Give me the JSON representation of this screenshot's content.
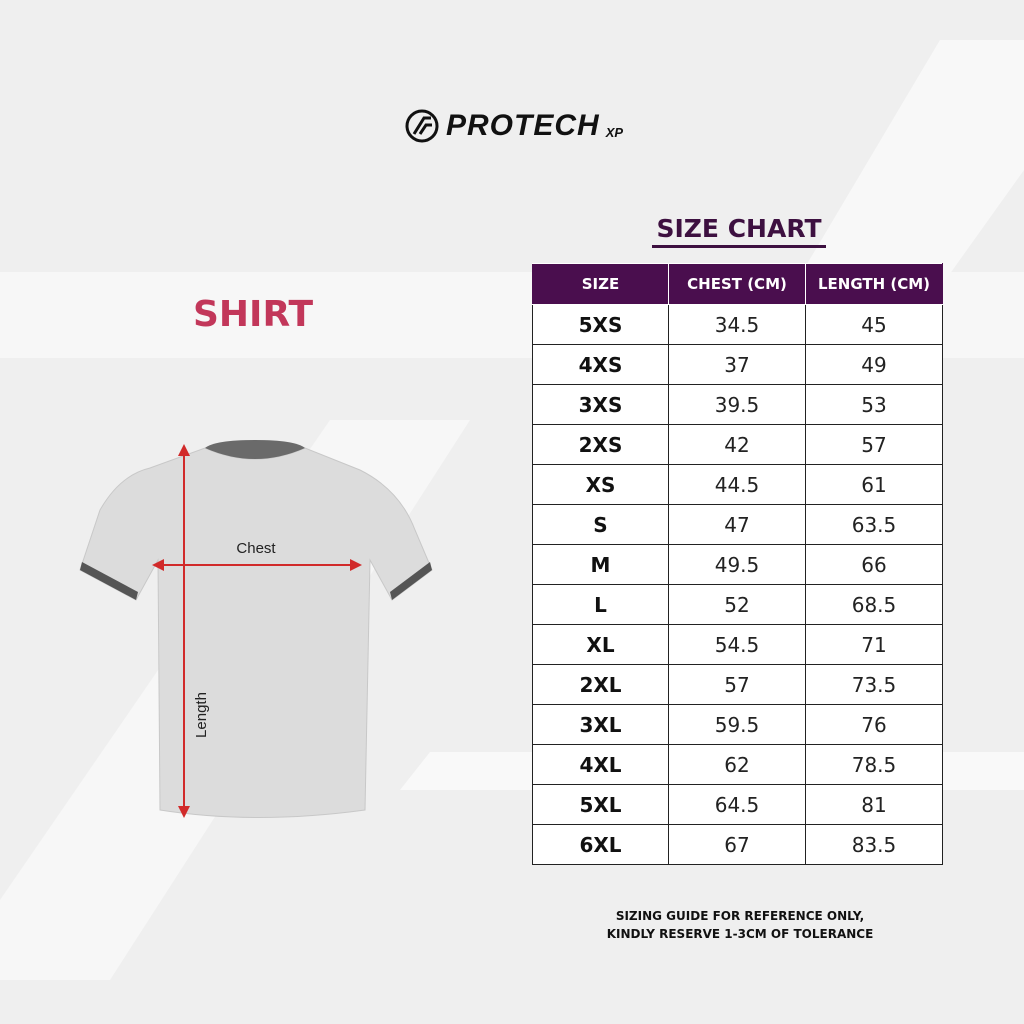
{
  "brand": {
    "logo_text": "PROTECH",
    "logo_suffix": "XP"
  },
  "product_title": "SHIRT",
  "chart_title": "SIZE CHART",
  "diagram": {
    "chest_label": "Chest",
    "length_label": "Length"
  },
  "colors": {
    "header_bg": "#4a0e4e",
    "title": "#3d1040",
    "product_title": "#c2375a",
    "arrow": "#d12a2a",
    "background": "#efefef"
  },
  "table": {
    "headers": [
      "SIZE",
      "CHEST (CM)",
      "LENGTH (CM)"
    ],
    "rows": [
      [
        "5XS",
        "34.5",
        "45"
      ],
      [
        "4XS",
        "37",
        "49"
      ],
      [
        "3XS",
        "39.5",
        "53"
      ],
      [
        "2XS",
        "42",
        "57"
      ],
      [
        "XS",
        "44.5",
        "61"
      ],
      [
        "S",
        "47",
        "63.5"
      ],
      [
        "M",
        "49.5",
        "66"
      ],
      [
        "L",
        "52",
        "68.5"
      ],
      [
        "XL",
        "54.5",
        "71"
      ],
      [
        "2XL",
        "57",
        "73.5"
      ],
      [
        "3XL",
        "59.5",
        "76"
      ],
      [
        "4XL",
        "62",
        "78.5"
      ],
      [
        "5XL",
        "64.5",
        "81"
      ],
      [
        "6XL",
        "67",
        "83.5"
      ]
    ]
  },
  "note": {
    "line1": "SIZING GUIDE FOR REFERENCE ONLY,",
    "line2": "KINDLY RESERVE 1-3CM OF TOLERANCE"
  }
}
